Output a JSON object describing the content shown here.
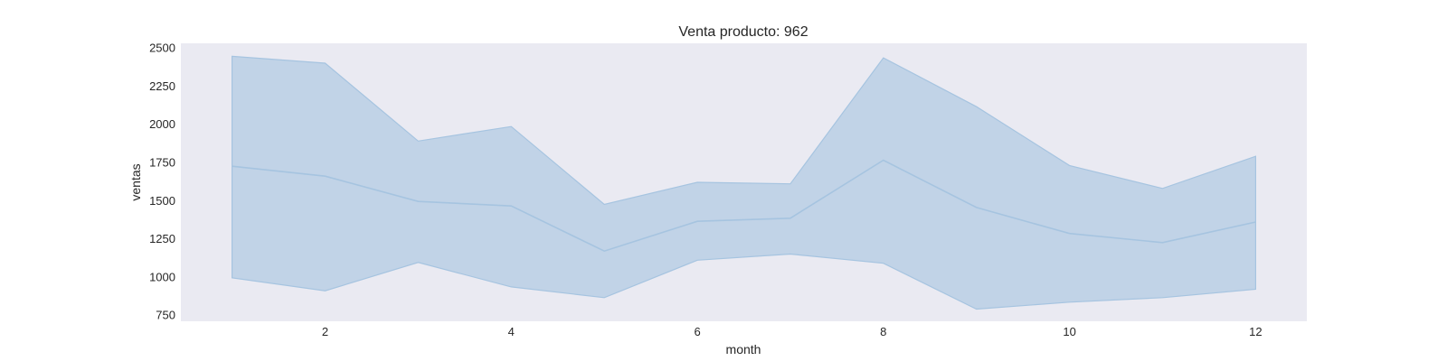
{
  "chart_data": {
    "type": "line",
    "title": "Venta producto: 962",
    "xlabel": "month",
    "ylabel": "ventas",
    "x": [
      1,
      2,
      3,
      4,
      5,
      6,
      7,
      8,
      9,
      10,
      11,
      12
    ],
    "series": [
      {
        "values": [
          1725,
          1660,
          1495,
          1465,
          1170,
          1365,
          1385,
          1765,
          1455,
          1285,
          1225,
          1360
        ],
        "band_upper": [
          2445,
          2400,
          1890,
          1985,
          1475,
          1620,
          1610,
          2435,
          2115,
          1730,
          1580,
          1790
        ],
        "band_lower": [
          995,
          910,
          1095,
          935,
          865,
          1110,
          1150,
          1090,
          790,
          835,
          865,
          920
        ]
      }
    ],
    "xticks": [
      2,
      4,
      6,
      8,
      10,
      12
    ],
    "yticks": [
      750,
      1000,
      1250,
      1500,
      1750,
      2000,
      2250,
      2500
    ],
    "xlim": [
      0.45,
      12.55
    ],
    "ylim": [
      710,
      2530
    ],
    "grid": false,
    "colors": {
      "plot_background": "#eaeaf2",
      "line": "#a6c4e0",
      "band_fill": "#b2cae2"
    }
  }
}
